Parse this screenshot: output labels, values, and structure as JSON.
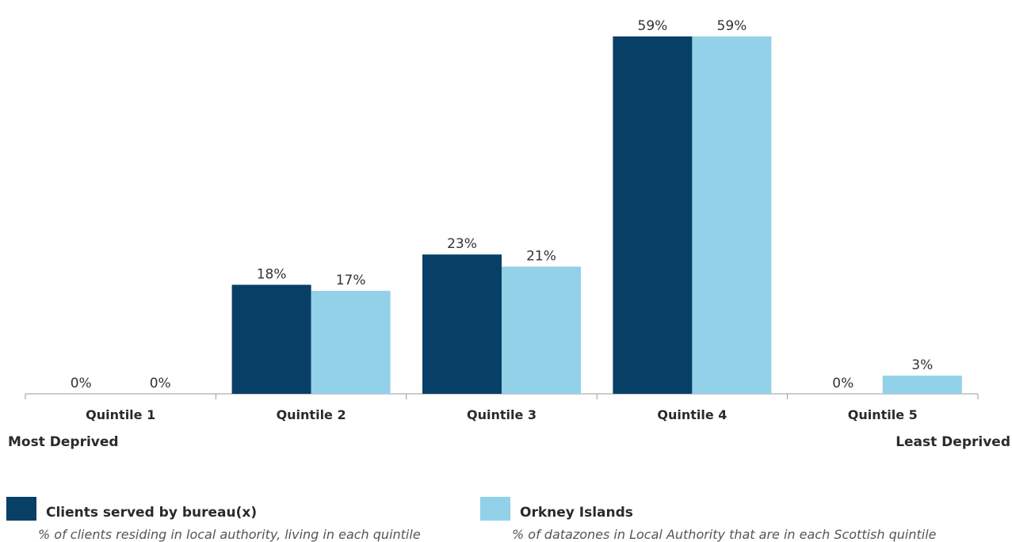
{
  "chart_data": {
    "type": "bar",
    "categories": [
      "Quintile 1",
      "Quintile 2",
      "Quintile 3",
      "Quintile 4",
      "Quintile 5"
    ],
    "series": [
      {
        "name": "Clients served by bureau(x)",
        "values": [
          0,
          18,
          23,
          59,
          0
        ],
        "labels": [
          "0%",
          "18%",
          "23%",
          "59%",
          "0%"
        ],
        "color": "#073f66"
      },
      {
        "name": "Orkney Islands",
        "values": [
          0,
          17,
          21,
          59,
          3
        ],
        "labels": [
          "0%",
          "17%",
          "21%",
          "59%",
          "3%"
        ],
        "color": "#92d1e8"
      }
    ],
    "ylim": [
      0,
      59
    ],
    "grid": false,
    "legend_position": "bottom"
  },
  "axis_ends": {
    "left": "Most Deprived",
    "right": "Least Deprived"
  },
  "legend": {
    "clients": {
      "name": "Clients served by bureau(x)",
      "description": "% of clients residing in local authority, living in each quintile"
    },
    "orkney": {
      "name": "Orkney Islands",
      "description": "% of datazones in Local Authority that are in each Scottish quintile"
    }
  },
  "colors": {
    "series1": "#073f66",
    "series2": "#92d1e8",
    "axis": "#999999"
  }
}
